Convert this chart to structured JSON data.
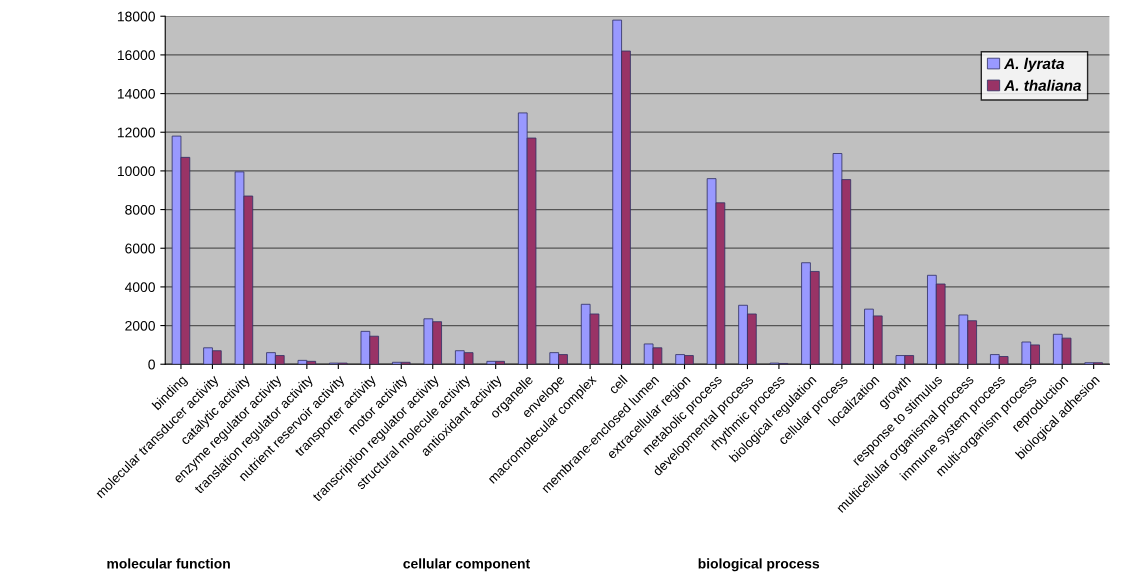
{
  "chart_data": {
    "type": "bar",
    "categories": [
      "binding",
      "molecular transducer activity",
      "catalytic activity",
      "enzyme regulator activity",
      "translation regulator activity",
      "nutrient reservoir activity",
      "transporter activity",
      "motor activity",
      "transcription regulator activity",
      "structural molecule activity",
      "antioxidant activity",
      "organelle",
      "envelope",
      "macromolecular complex",
      "cell",
      "membrane-enclosed lumen",
      "extracellular region",
      "metabolic process",
      "developmental process",
      "rhythmic process",
      "biological regulation",
      "cellular process",
      "localization",
      "growth",
      "response to stimulus",
      "multicellular organismal process",
      "immune system process",
      "multi-organism process",
      "reproduction",
      "biological adhesion"
    ],
    "series": [
      {
        "name": "A. lyrata",
        "color": "#9999ff",
        "values": [
          11800,
          850,
          9950,
          600,
          200,
          60,
          1700,
          100,
          2350,
          700,
          150,
          13000,
          600,
          3100,
          17800,
          1050,
          500,
          9600,
          3050,
          60,
          5250,
          10900,
          2850,
          450,
          4600,
          2550,
          500,
          1150,
          1550,
          80
        ]
      },
      {
        "name": "A. thaliana",
        "color": "#993366",
        "values": [
          10700,
          700,
          8700,
          450,
          150,
          60,
          1450,
          100,
          2200,
          600,
          150,
          11700,
          500,
          2600,
          16200,
          850,
          450,
          8350,
          2600,
          40,
          4800,
          9550,
          2500,
          450,
          4150,
          2250,
          400,
          1000,
          1350,
          80
        ]
      }
    ],
    "ylim": [
      0,
      18000
    ],
    "yticks": [
      0,
      2000,
      4000,
      6000,
      8000,
      10000,
      12000,
      14000,
      16000,
      18000
    ],
    "grid": "y",
    "legend": "top right",
    "annotations": [
      "molecular function",
      "cellular component",
      "biological process"
    ]
  }
}
